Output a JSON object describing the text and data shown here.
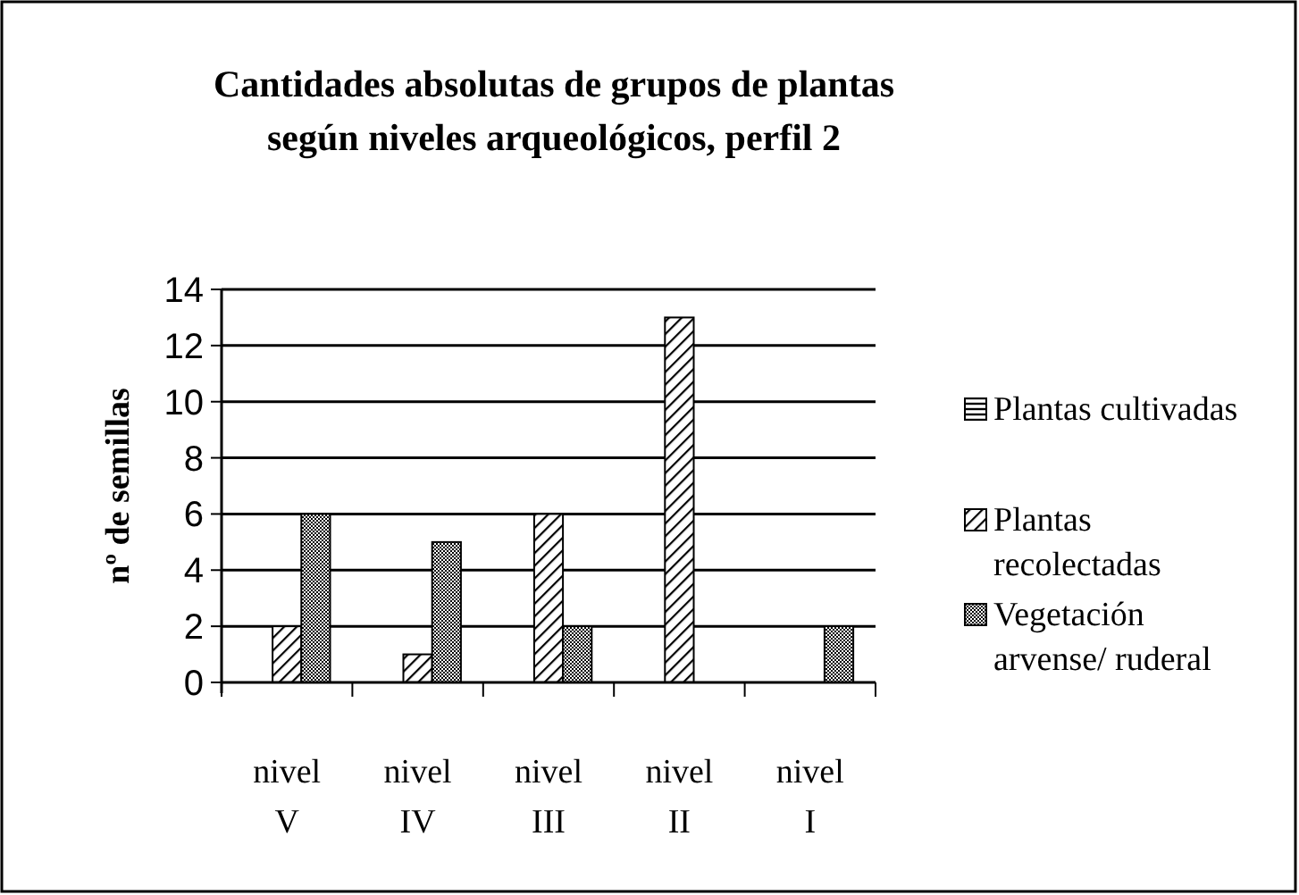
{
  "chart_data": {
    "type": "bar",
    "title": "Cantidades absolutas de grupos de plantas\nsegún niveles arqueológicos, perfil 2",
    "ylabel": "nº de semillas",
    "categories": [
      "nivel V",
      "nivel IV",
      "nivel III",
      "nivel II",
      "nivel I"
    ],
    "series": [
      {
        "name": "Plantas cultivadas",
        "color": "#000000",
        "values": [
          0,
          0,
          0,
          0,
          0
        ]
      },
      {
        "name": "Plantas recolectadas",
        "color": "#000000",
        "values": [
          2,
          1,
          6,
          13,
          0
        ]
      },
      {
        "name": "Vegetación arvense/ ruderal",
        "color": "#000000",
        "values": [
          6,
          5,
          2,
          0,
          2
        ]
      }
    ],
    "ylim": [
      0,
      14
    ],
    "yticks": [
      0,
      2,
      4,
      6,
      8,
      10,
      12,
      14
    ],
    "grid": "y",
    "legend": "right"
  }
}
